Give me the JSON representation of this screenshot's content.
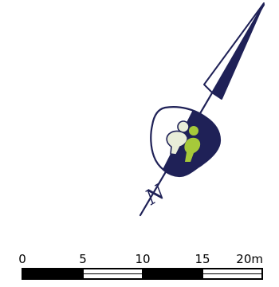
{
  "north_arrow": {
    "letter": "N",
    "fill_color": "#1f2157",
    "outline_color": "#1f2157"
  },
  "site_symbol": {
    "dark_color": "#1f2157",
    "light_color": "#ffffff",
    "figure_light_color": "#e9edd9",
    "figure_green_color": "#a6c93a"
  },
  "scale_bar": {
    "unit": "m",
    "labels": [
      "0",
      "5",
      "10",
      "15",
      "20m"
    ],
    "max_value": 20,
    "segment_colors": [
      "#000000",
      "#ffffff",
      "#000000",
      "#ffffff"
    ]
  }
}
